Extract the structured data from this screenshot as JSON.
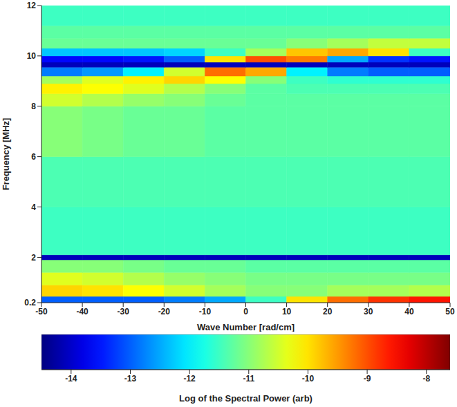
{
  "chart_data": {
    "type": "heatmap",
    "xlabel": "Wave Number [rad/cm]",
    "ylabel": "Frequency [MHz]",
    "xlim": [
      -50,
      50
    ],
    "ylim": [
      0.2,
      12
    ],
    "xticks": [
      -50,
      -40,
      -30,
      -20,
      -10,
      0,
      10,
      20,
      30,
      40,
      50
    ],
    "yticks": [
      0.2,
      2,
      4,
      6,
      8,
      10,
      12
    ],
    "x_edges": [
      -50,
      -40,
      -30,
      -20,
      -10,
      0,
      10,
      20,
      30,
      40,
      50
    ],
    "y_edges": [
      0.2,
      0.45,
      0.9,
      1.4,
      1.9,
      2.1,
      4,
      6,
      8,
      8.5,
      8.9,
      9.2,
      9.55,
      9.75,
      10,
      10.3,
      10.7,
      11.2,
      12
    ],
    "cells": [
      [
        -13,
        -13,
        -13,
        -12.8,
        -12.5,
        -11.5,
        -10,
        -9.2,
        -8.8,
        -8.6
      ],
      [
        -9.9,
        -10,
        -10.2,
        -10.5,
        -10.8,
        -11,
        -11,
        -10.8,
        -10.8,
        -10.7
      ],
      [
        -10.4,
        -10.5,
        -10.7,
        -10.9,
        -11,
        -11.1,
        -11.1,
        -11.1,
        -11.1,
        -11.1
      ],
      [
        -11,
        -11,
        -11.1,
        -11.2,
        -11.2,
        -11.3,
        -11.3,
        -11.3,
        -11.3,
        -11.3
      ],
      [
        -14.1,
        -14.1,
        -14.1,
        -14.1,
        -14.1,
        -14.1,
        -14.1,
        -14.1,
        -14.1,
        -14.1
      ],
      [
        -11.5,
        -11.5,
        -11.5,
        -11.5,
        -11.5,
        -11.5,
        -11.5,
        -11.5,
        -11.5,
        -11.5
      ],
      [
        -11.4,
        -11.4,
        -11.4,
        -11.4,
        -11.4,
        -11.4,
        -11.4,
        -11.4,
        -11.4,
        -11.4
      ],
      [
        -11,
        -11.1,
        -11.2,
        -11.2,
        -11.3,
        -11.3,
        -11.3,
        -11.3,
        -11.3,
        -11.3
      ],
      [
        -10.5,
        -10.7,
        -10.9,
        -11,
        -11.2,
        -11.3,
        -11.3,
        -11.3,
        -11.3,
        -11.3
      ],
      [
        -10.1,
        -10.2,
        -10.4,
        -10.7,
        -11,
        -11.3,
        -11.4,
        -11.4,
        -11.4,
        -11.4
      ],
      [
        -10.8,
        -10.4,
        -10.1,
        -9.9,
        -10.2,
        -11,
        -11.5,
        -11.6,
        -11.6,
        -11.6
      ],
      [
        -12.8,
        -12.6,
        -12,
        -10.5,
        -9.2,
        -9.6,
        -12,
        -12.8,
        -13,
        -13
      ],
      [
        -14.1,
        -14.1,
        -14.1,
        -14.1,
        -14.1,
        -14.1,
        -14.1,
        -14.1,
        -14.1,
        -14.1
      ],
      [
        -13.6,
        -13.6,
        -13.5,
        -13,
        -10,
        -9,
        -9.3,
        -12.5,
        -13.3,
        -13.5
      ],
      [
        -12.3,
        -12.3,
        -12.3,
        -12.2,
        -11.5,
        -10.8,
        -9.8,
        -9.6,
        -10,
        -11.5
      ],
      [
        -11.2,
        -11.2,
        -11.2,
        -11.2,
        -11.2,
        -11.2,
        -11,
        -10.8,
        -10.6,
        -10.6
      ],
      [
        -11.3,
        -11.3,
        -11.3,
        -11.3,
        -11.3,
        -11.3,
        -11.3,
        -11.3,
        -11.3,
        -11.3
      ],
      [
        -11.5,
        -11.5,
        -11.5,
        -11.5,
        -11.5,
        -11.5,
        -11.5,
        -11.5,
        -11.5,
        -11.5
      ]
    ],
    "colorbar_label": "Log of the Spectral Power (arb)",
    "colorbar_range": [
      -14.5,
      -7.6
    ],
    "colorbar_ticks": [
      -14,
      -13,
      -12,
      -11,
      -10,
      -9,
      -8
    ]
  }
}
